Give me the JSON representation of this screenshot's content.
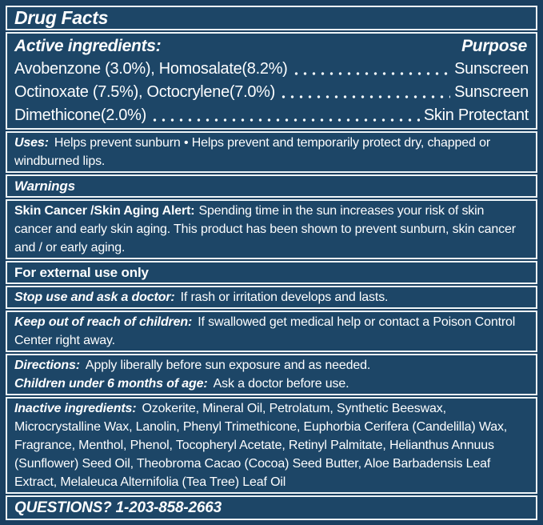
{
  "colors": {
    "panel_background": "#1d4667",
    "outer_background": "#1a3f60",
    "border": "#eef5f8",
    "text": "#fdfeff"
  },
  "panel": {
    "title": "Drug Facts",
    "active": {
      "header": "Active ingredients:",
      "purpose_header": "Purpose",
      "rows": [
        {
          "name": "Avobenzone (3.0%), Homosalate(8.2%)",
          "purpose": "Sunscreen"
        },
        {
          "name": "Octinoxate (7.5%), Octocrylene(7.0%)",
          "purpose": "Sunscreen"
        },
        {
          "name": "Dimethicone(2.0%)",
          "purpose": "Skin Protectant"
        }
      ]
    },
    "uses": {
      "label": "Uses:",
      "lines": [
        "Helps prevent sunburn • Helps prevent and temporarily protect dry, chapped or",
        "windburned lips."
      ]
    },
    "warnings_header": "Warnings",
    "alert": {
      "label": "Skin Cancer /Skin Aging Alert:",
      "lines": [
        "Spending time in the sun increases your risk of skin",
        "cancer and early skin aging. This product has been shown to prevent sunburn, skin cancer",
        "and / or early aging."
      ]
    },
    "external_use": "For external use only",
    "stop_use": {
      "label": "Stop use and ask a doctor:",
      "text": "If rash or irritation develops and lasts."
    },
    "keep_out": {
      "label": "Keep out of reach of children:",
      "lines": [
        "If swallowed get medical help or contact a Poison Control",
        "Center right away."
      ]
    },
    "directions": {
      "label": "Directions:",
      "text": "Apply liberally before sun exposure and as needed."
    },
    "children": {
      "label": "Children under 6 months of age:",
      "text": "Ask a doctor before use."
    },
    "inactive": {
      "label": "Inactive ingredients:",
      "lines": [
        "Ozokerite, Mineral Oil, Petrolatum, Synthetic Beeswax,",
        "Microcrystalline Wax, Lanolin, Phenyl Trimethicone, Euphorbia Cerifera (Candelilla) Wax,",
        "Fragrance, Menthol, Phenol, Tocopheryl Acetate, Retinyl Palmitate, Helianthus Annuus",
        "(Sunflower) Seed Oil, Theobroma Cacao (Cocoa) Seed Butter, Aloe Barbadensis Leaf",
        "Extract, Melaleuca Alternifolia (Tea Tree) Leaf Oil"
      ]
    },
    "questions": "QUESTIONS? 1-203-858-2663"
  }
}
